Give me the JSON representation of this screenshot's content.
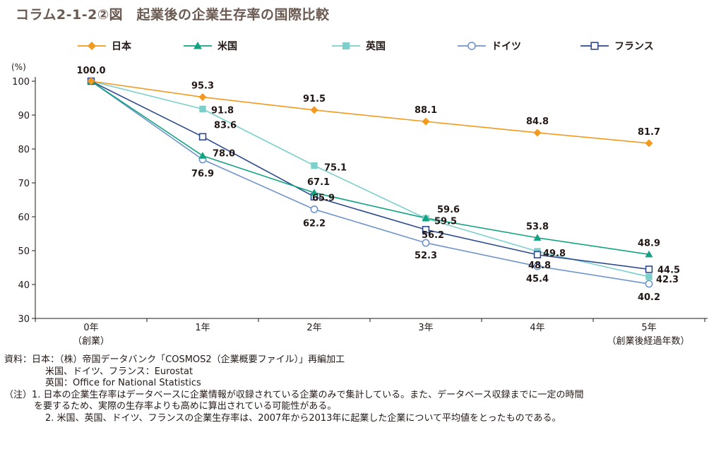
{
  "chart_data": {
    "type": "line",
    "title": "コラム2-1-2②図　起業後の企業生存率の国際比較",
    "ylabel": "(%)",
    "xlabel": "",
    "ylim": [
      30,
      100
    ],
    "yticks": [
      "100",
      "90",
      "80",
      "70",
      "60",
      "50",
      "40",
      "30"
    ],
    "categories": [
      {
        "label": "0年",
        "sub": "（創業）"
      },
      {
        "label": "1年",
        "sub": ""
      },
      {
        "label": "2年",
        "sub": ""
      },
      {
        "label": "3年",
        "sub": ""
      },
      {
        "label": "4年",
        "sub": ""
      },
      {
        "label": "5年",
        "sub": "（創業後経過年数）"
      }
    ],
    "legend_position": "top",
    "series": [
      {
        "name": "日本",
        "color": "#f39a1e",
        "marker": "diamond",
        "values": [
          100.0,
          95.3,
          91.5,
          88.1,
          84.8,
          81.7
        ],
        "labels": [
          "100.0",
          "95.3",
          "91.5",
          "88.1",
          "84.8",
          "81.7"
        ]
      },
      {
        "name": "米国",
        "color": "#13a383",
        "marker": "triangle",
        "values": [
          100.0,
          78.0,
          67.1,
          59.6,
          53.8,
          48.9
        ],
        "labels": [
          "",
          "78.0",
          "67.1",
          "59.6",
          "53.8",
          "48.9"
        ]
      },
      {
        "name": "英国",
        "color": "#7ccfcb",
        "marker": "square",
        "values": [
          100.0,
          91.8,
          75.1,
          59.5,
          49.8,
          42.3
        ],
        "labels": [
          "",
          "91.8",
          "75.1",
          "59.5",
          "49.8",
          "42.3"
        ]
      },
      {
        "name": "ドイツ",
        "color": "#6f95cc",
        "marker": "circle-open",
        "values": [
          100.0,
          76.9,
          62.2,
          52.3,
          45.4,
          40.2
        ],
        "labels": [
          "",
          "76.9",
          "62.2",
          "52.3",
          "45.4",
          "40.2"
        ]
      },
      {
        "name": "フランス",
        "color": "#2d4a8e",
        "marker": "square-open",
        "values": [
          100.0,
          83.6,
          65.9,
          56.2,
          48.8,
          44.5
        ],
        "labels": [
          "",
          "83.6",
          "65.9",
          "56.2",
          "48.8",
          "44.5"
        ]
      }
    ]
  },
  "notes": {
    "source_line1": "資料：日本：（株）帝国データバンク「COSMOS2（企業概要ファイル）」再編加工",
    "source_line2": "米国、ドイツ、フランス：Eurostat",
    "source_line3": "英国：Office for National Statistics",
    "note1_line1": "（注）1. 日本の企業生存率はデータベースに企業情報が収録されている企業のみで集計している。また、データベース収録までに一定の時間",
    "note1_line2": "を要するため、実際の生存率よりも高めに算出されている可能性がある。",
    "note2": "2. 米国、英国、ドイツ、フランスの企業生存率は、2007年から2013年に起業した企業について平均値をとったものである。"
  }
}
